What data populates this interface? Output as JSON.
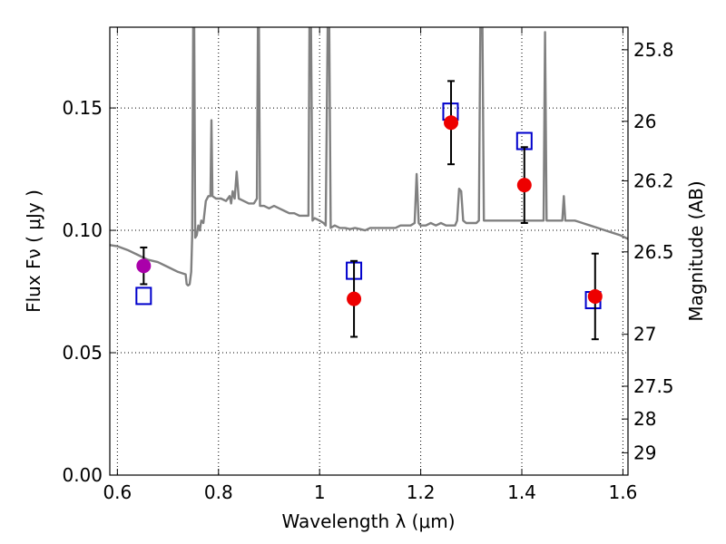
{
  "chart_data": {
    "type": "scatter",
    "xlabel": "Wavelength  λ (μm)",
    "ylabel": "Flux  Fν  ( μJy )",
    "y2label": "Magnitude (AB)",
    "xlim": [
      0.585,
      1.61
    ],
    "ylim": [
      0.0,
      0.183
    ],
    "grid": true,
    "x_ticks": [
      {
        "v": 0.6,
        "label": "0.6"
      },
      {
        "v": 0.8,
        "label": "0.8"
      },
      {
        "v": 1.0,
        "label": "1"
      },
      {
        "v": 1.2,
        "label": "1.2"
      },
      {
        "v": 1.4,
        "label": "1.4"
      },
      {
        "v": 1.6,
        "label": "1.6"
      }
    ],
    "y_ticks": [
      {
        "v": 0.0,
        "label": "0.00"
      },
      {
        "v": 0.05,
        "label": "0.05"
      },
      {
        "v": 0.1,
        "label": "0.10"
      },
      {
        "v": 0.15,
        "label": "0.15"
      }
    ],
    "mag_ticks": [
      {
        "mag": 25.8,
        "label": "25.8"
      },
      {
        "mag": 26.0,
        "label": "26"
      },
      {
        "mag": 26.2,
        "label": "26.2"
      },
      {
        "mag": 26.5,
        "label": "26.5"
      },
      {
        "mag": 27.0,
        "label": "27"
      },
      {
        "mag": 27.5,
        "label": "27.5"
      },
      {
        "mag": 28.0,
        "label": "28"
      },
      {
        "mag": 29.0,
        "label": "29"
      }
    ],
    "series": [
      {
        "name": "model spectrum",
        "kind": "line",
        "color": "#808080",
        "points": [
          [
            0.585,
            0.094
          ],
          [
            0.6,
            0.0935
          ],
          [
            0.62,
            0.092
          ],
          [
            0.64,
            0.09
          ],
          [
            0.66,
            0.088
          ],
          [
            0.68,
            0.087
          ],
          [
            0.7,
            0.085
          ],
          [
            0.72,
            0.083
          ],
          [
            0.735,
            0.082
          ],
          [
            0.737,
            0.078
          ],
          [
            0.74,
            0.0775
          ],
          [
            0.743,
            0.078
          ],
          [
            0.746,
            0.083
          ],
          [
            0.748,
            0.098
          ],
          [
            0.75,
            0.183
          ],
          [
            0.752,
            0.183
          ],
          [
            0.754,
            0.097
          ],
          [
            0.757,
            0.098
          ],
          [
            0.76,
            0.102
          ],
          [
            0.763,
            0.1
          ],
          [
            0.766,
            0.104
          ],
          [
            0.77,
            0.103
          ],
          [
            0.775,
            0.112
          ],
          [
            0.78,
            0.114
          ],
          [
            0.784,
            0.114
          ],
          [
            0.786,
            0.145
          ],
          [
            0.788,
            0.114
          ],
          [
            0.795,
            0.113
          ],
          [
            0.805,
            0.113
          ],
          [
            0.815,
            0.112
          ],
          [
            0.822,
            0.114
          ],
          [
            0.825,
            0.111
          ],
          [
            0.828,
            0.116
          ],
          [
            0.832,
            0.113
          ],
          [
            0.836,
            0.124
          ],
          [
            0.84,
            0.113
          ],
          [
            0.85,
            0.112
          ],
          [
            0.86,
            0.111
          ],
          [
            0.87,
            0.111
          ],
          [
            0.876,
            0.113
          ],
          [
            0.878,
            0.183
          ],
          [
            0.88,
            0.183
          ],
          [
            0.882,
            0.11
          ],
          [
            0.89,
            0.11
          ],
          [
            0.9,
            0.109
          ],
          [
            0.91,
            0.11
          ],
          [
            0.92,
            0.109
          ],
          [
            0.93,
            0.108
          ],
          [
            0.94,
            0.107
          ],
          [
            0.95,
            0.107
          ],
          [
            0.96,
            0.106
          ],
          [
            0.97,
            0.106
          ],
          [
            0.978,
            0.106
          ],
          [
            0.98,
            0.183
          ],
          [
            0.983,
            0.183
          ],
          [
            0.986,
            0.104
          ],
          [
            0.99,
            0.105
          ],
          [
            1.0,
            0.104
          ],
          [
            1.008,
            0.103
          ],
          [
            1.012,
            0.102
          ],
          [
            1.016,
            0.183
          ],
          [
            1.019,
            0.183
          ],
          [
            1.022,
            0.101
          ],
          [
            1.03,
            0.102
          ],
          [
            1.04,
            0.101
          ],
          [
            1.05,
            0.101
          ],
          [
            1.06,
            0.1005
          ],
          [
            1.07,
            0.101
          ],
          [
            1.08,
            0.1005
          ],
          [
            1.09,
            0.1
          ],
          [
            1.1,
            0.101
          ],
          [
            1.11,
            0.101
          ],
          [
            1.12,
            0.101
          ],
          [
            1.13,
            0.101
          ],
          [
            1.14,
            0.101
          ],
          [
            1.15,
            0.101
          ],
          [
            1.16,
            0.102
          ],
          [
            1.17,
            0.102
          ],
          [
            1.18,
            0.102
          ],
          [
            1.188,
            0.103
          ],
          [
            1.192,
            0.123
          ],
          [
            1.196,
            0.103
          ],
          [
            1.2,
            0.102
          ],
          [
            1.21,
            0.102
          ],
          [
            1.22,
            0.103
          ],
          [
            1.23,
            0.102
          ],
          [
            1.24,
            0.103
          ],
          [
            1.25,
            0.102
          ],
          [
            1.26,
            0.102
          ],
          [
            1.268,
            0.102
          ],
          [
            1.272,
            0.104
          ],
          [
            1.276,
            0.117
          ],
          [
            1.28,
            0.116
          ],
          [
            1.284,
            0.104
          ],
          [
            1.29,
            0.103
          ],
          [
            1.3,
            0.103
          ],
          [
            1.31,
            0.103
          ],
          [
            1.315,
            0.104
          ],
          [
            1.318,
            0.183
          ],
          [
            1.322,
            0.183
          ],
          [
            1.325,
            0.104
          ],
          [
            1.335,
            0.104
          ],
          [
            1.345,
            0.104
          ],
          [
            1.355,
            0.104
          ],
          [
            1.365,
            0.104
          ],
          [
            1.375,
            0.104
          ],
          [
            1.385,
            0.104
          ],
          [
            1.395,
            0.104
          ],
          [
            1.405,
            0.104
          ],
          [
            1.415,
            0.104
          ],
          [
            1.425,
            0.104
          ],
          [
            1.435,
            0.104
          ],
          [
            1.44,
            0.104
          ],
          [
            1.443,
            0.104
          ],
          [
            1.446,
            0.181
          ],
          [
            1.449,
            0.104
          ],
          [
            1.455,
            0.104
          ],
          [
            1.465,
            0.104
          ],
          [
            1.475,
            0.104
          ],
          [
            1.48,
            0.104
          ],
          [
            1.483,
            0.114
          ],
          [
            1.486,
            0.104
          ],
          [
            1.495,
            0.104
          ],
          [
            1.505,
            0.104
          ],
          [
            1.52,
            0.103
          ],
          [
            1.535,
            0.102
          ],
          [
            1.55,
            0.101
          ],
          [
            1.565,
            0.1
          ],
          [
            1.58,
            0.099
          ],
          [
            1.595,
            0.098
          ],
          [
            1.61,
            0.0965
          ]
        ]
      },
      {
        "name": "model photometry",
        "kind": "square",
        "color": "#0000cc",
        "points": [
          [
            0.652,
            0.0732
          ],
          [
            1.068,
            0.0835
          ],
          [
            1.259,
            0.1485
          ],
          [
            1.405,
            0.1365
          ],
          [
            1.541,
            0.0715
          ]
        ]
      },
      {
        "name": "measured (red)",
        "kind": "errorbar",
        "color": "#ee0000",
        "points": [
          {
            "x": 1.068,
            "y": 0.072,
            "err": 0.0155
          },
          {
            "x": 1.26,
            "y": 0.144,
            "err": 0.017
          },
          {
            "x": 1.405,
            "y": 0.1185,
            "err": 0.0155
          },
          {
            "x": 1.545,
            "y": 0.073,
            "err": 0.0175
          }
        ]
      },
      {
        "name": "measured (magenta)",
        "kind": "errorbar",
        "color": "#aa00aa",
        "points": [
          {
            "x": 0.652,
            "y": 0.0855,
            "err": 0.0075
          }
        ]
      }
    ]
  }
}
